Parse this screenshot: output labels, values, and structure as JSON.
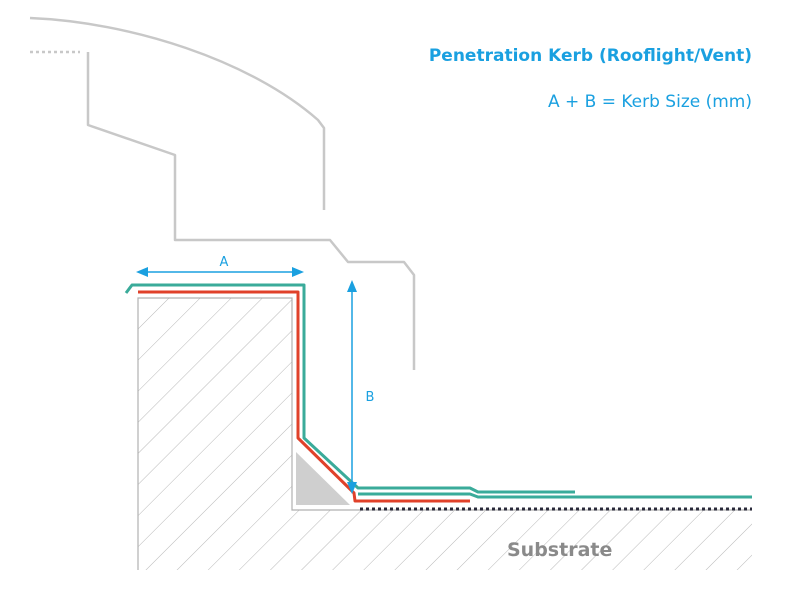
{
  "diagram": {
    "title": "Penetration Kerb (Rooflight/Vent)",
    "subtitle": "A + B = Kerb Size (mm)",
    "dimension_a": "A",
    "dimension_b": "B",
    "substrate_label": "Substrate"
  },
  "colors": {
    "accent": "#1aa0e0",
    "membrane_green": "#3aab9a",
    "membrane_red": "#e0412a",
    "outline_grey": "#c8c8c8",
    "hatch_grey": "#b8b8b8",
    "fillet_grey": "#cfcfcf",
    "substrate_text": "#8a8a8a",
    "dotted_line": "#2a2a3a"
  }
}
